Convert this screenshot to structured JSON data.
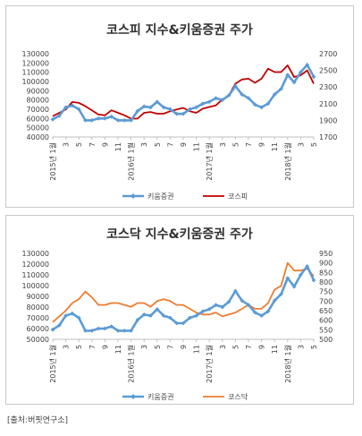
{
  "source": "[출처:버핏연구소]",
  "chart_data": [
    {
      "type": "line",
      "title": "코스피 지수&키움증권 주가",
      "x": [
        "2015년 1월",
        "2",
        "3",
        "4",
        "5",
        "6",
        "7",
        "8",
        "9",
        "10",
        "11",
        "12",
        "2016년 1월",
        "2",
        "3",
        "4",
        "5",
        "6",
        "7",
        "8",
        "9",
        "10",
        "11",
        "12",
        "2017년 1월",
        "2",
        "3",
        "4",
        "5",
        "6",
        "7",
        "8",
        "9",
        "10",
        "11",
        "12",
        "2018년 1월",
        "2",
        "3",
        "4",
        "5"
      ],
      "x_tick_labels": [
        "2015년 1월",
        "3",
        "5",
        "7",
        "9",
        "11",
        "2016년 1월",
        "3",
        "5",
        "7",
        "9",
        "11",
        "2017년 1월",
        "3",
        "5",
        "7",
        "9",
        "11",
        "2018년 1월",
        "3",
        "5"
      ],
      "y_left": {
        "ticks": [
          40000,
          50000,
          60000,
          70000,
          80000,
          90000,
          100000,
          110000,
          120000,
          130000
        ],
        "lim": [
          40000,
          130000
        ]
      },
      "y_right": {
        "ticks": [
          1700,
          1900,
          2100,
          2300,
          2500,
          2700
        ],
        "lim": [
          1700,
          2700
        ]
      },
      "legend_position": "bottom",
      "grid": false,
      "series": [
        {
          "name": "키움증권",
          "axis": "left",
          "color": "#5B9BD5",
          "marker": "diamond",
          "values": [
            59000,
            63000,
            72000,
            74000,
            70000,
            58000,
            58000,
            60000,
            60000,
            62000,
            58000,
            58000,
            58000,
            68000,
            73000,
            72000,
            78000,
            72000,
            70000,
            65000,
            65000,
            70000,
            72000,
            76000,
            78000,
            82000,
            80000,
            85000,
            95000,
            86000,
            82000,
            75000,
            72000,
            76000,
            86000,
            92000,
            107000,
            99000,
            110000,
            118000,
            105000
          ]
        },
        {
          "name": "코스피",
          "axis": "right",
          "color": "#C00000",
          "values": [
            1950,
            1990,
            2030,
            2120,
            2110,
            2070,
            2020,
            1970,
            1960,
            2020,
            1990,
            1960,
            1920,
            1920,
            1990,
            2000,
            1980,
            1980,
            2010,
            2030,
            2050,
            2010,
            1990,
            2040,
            2060,
            2080,
            2150,
            2200,
            2340,
            2390,
            2400,
            2350,
            2400,
            2520,
            2480,
            2480,
            2560,
            2420,
            2440,
            2500,
            2340
          ]
        }
      ]
    },
    {
      "type": "line",
      "title": "코스닥 지수&키움증권 주가",
      "x": [
        "2015년 1월",
        "2",
        "3",
        "4",
        "5",
        "6",
        "7",
        "8",
        "9",
        "10",
        "11",
        "12",
        "2016년 1월",
        "2",
        "3",
        "4",
        "5",
        "6",
        "7",
        "8",
        "9",
        "10",
        "11",
        "12",
        "2017년 1월",
        "2",
        "3",
        "4",
        "5",
        "6",
        "7",
        "8",
        "9",
        "10",
        "11",
        "12",
        "2018년 1월",
        "2",
        "3",
        "4",
        "5"
      ],
      "x_tick_labels": [
        "2015년 1월",
        "3",
        "5",
        "7",
        "9",
        "11",
        "2016년 1월",
        "3",
        "5",
        "7",
        "9",
        "11",
        "2017년 1월",
        "3",
        "5",
        "7",
        "9",
        "11",
        "2018년 1월",
        "3",
        "5"
      ],
      "y_left": {
        "ticks": [
          50000,
          60000,
          70000,
          80000,
          90000,
          100000,
          110000,
          120000,
          130000
        ],
        "lim": [
          50000,
          130000
        ]
      },
      "y_right": {
        "ticks": [
          500,
          550,
          600,
          650,
          700,
          750,
          800,
          850,
          900,
          950
        ],
        "lim": [
          500,
          950
        ]
      },
      "legend_position": "bottom",
      "grid": false,
      "series": [
        {
          "name": "키움증권",
          "axis": "left",
          "color": "#5B9BD5",
          "marker": "diamond",
          "values": [
            59000,
            63000,
            72000,
            74000,
            70000,
            58000,
            58000,
            60000,
            60000,
            62000,
            58000,
            58000,
            58000,
            68000,
            73000,
            72000,
            78000,
            72000,
            70000,
            65000,
            65000,
            70000,
            72000,
            76000,
            78000,
            82000,
            80000,
            85000,
            95000,
            86000,
            82000,
            75000,
            72000,
            76000,
            86000,
            92000,
            107000,
            99000,
            110000,
            118000,
            105000
          ]
        },
        {
          "name": "코스닥",
          "axis": "right",
          "color": "#ED7D31",
          "values": [
            590,
            620,
            650,
            690,
            710,
            750,
            720,
            680,
            680,
            690,
            690,
            680,
            670,
            690,
            690,
            670,
            700,
            710,
            700,
            680,
            680,
            660,
            640,
            630,
            630,
            640,
            620,
            630,
            640,
            660,
            680,
            660,
            660,
            690,
            760,
            780,
            900,
            860,
            860,
            870,
            830
          ]
        }
      ]
    }
  ]
}
